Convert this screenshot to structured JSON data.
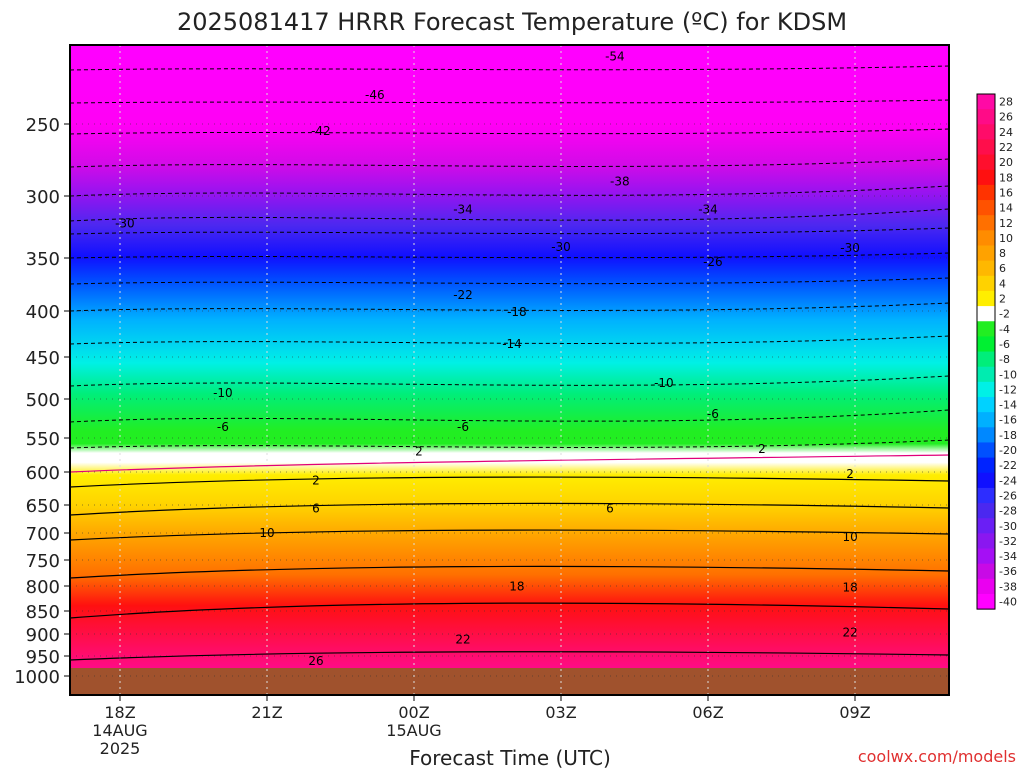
{
  "chart_data": {
    "type": "heatmap",
    "title": "2025081417 HRRR Forecast Temperature (ºC) for KDSM",
    "xlabel": "Forecast Time (UTC)",
    "ylabel": "",
    "credit": "coolwx.com/models",
    "x_ticks": [
      {
        "hours": 0,
        "label": "18Z",
        "sub1": "14AUG",
        "sub2": "2025"
      },
      {
        "hours": 3,
        "label": "21Z",
        "sub1": "",
        "sub2": ""
      },
      {
        "hours": 6,
        "label": "00Z",
        "sub1": "15AUG",
        "sub2": ""
      },
      {
        "hours": 9,
        "label": "03Z",
        "sub1": "",
        "sub2": ""
      },
      {
        "hours": 12,
        "label": "06Z",
        "sub1": "",
        "sub2": ""
      },
      {
        "hours": 15,
        "label": "09Z",
        "sub1": "",
        "sub2": ""
      }
    ],
    "y_ticks": [
      "250",
      "300",
      "350",
      "400",
      "450",
      "500",
      "550",
      "600",
      "650",
      "700",
      "750",
      "800",
      "850",
      "900",
      "950",
      "1000"
    ],
    "colorbar_labels": [
      "28",
      "26",
      "24",
      "22",
      "20",
      "18",
      "16",
      "14",
      "12",
      "10",
      "8",
      "6",
      "4",
      "2",
      "-2",
      "-4",
      "-6",
      "-8",
      "-10",
      "-12",
      "-14",
      "-16",
      "-18",
      "-20",
      "-22",
      "-24",
      "-26",
      "-28",
      "-30",
      "-32",
      "-34",
      "-36",
      "-38",
      "-40"
    ],
    "colorbar_colors": [
      "#ff0aa5",
      "#ff0b87",
      "#ff0c69",
      "#ff0e4b",
      "#ff0f2d",
      "#ff1010",
      "#ff3300",
      "#ff5200",
      "#ff7000",
      "#ff8c00",
      "#ffa200",
      "#ffb800",
      "#ffd200",
      "#ffee00",
      "#ffffff",
      "#22ee22",
      "#00f032",
      "#00ee7a",
      "#00ecb0",
      "#00f0e6",
      "#00d2ff",
      "#00b0ff",
      "#0088ff",
      "#0050ff",
      "#0023ff",
      "#1010ff",
      "#2d2dff",
      "#4b28f0",
      "#6a1ff5",
      "#8a17f0",
      "#a50ff5",
      "#c80ae6",
      "#ea00f0",
      "#ff00ff"
    ],
    "contour_labels": [
      {
        "value": "-54",
        "hours": 10.1,
        "hpa": 203
      },
      {
        "value": "-46",
        "hours": 5.2,
        "hpa": 230
      },
      {
        "value": "-42",
        "hours": 4.1,
        "hpa": 255
      },
      {
        "value": "-38",
        "hours": 10.2,
        "hpa": 290
      },
      {
        "value": "-34",
        "hours": 7.0,
        "hpa": 311
      },
      {
        "value": "-34",
        "hours": 12.0,
        "hpa": 311
      },
      {
        "value": "-30",
        "hours": 0.1,
        "hpa": 322
      },
      {
        "value": "-30",
        "hours": 9.0,
        "hpa": 341
      },
      {
        "value": "-30",
        "hours": 14.9,
        "hpa": 342
      },
      {
        "value": "-26",
        "hours": 12.1,
        "hpa": 354
      },
      {
        "value": "-22",
        "hours": 7.0,
        "hpa": 385
      },
      {
        "value": "-18",
        "hours": 8.1,
        "hpa": 401
      },
      {
        "value": "-14",
        "hours": 8.0,
        "hpa": 436
      },
      {
        "value": "-10",
        "hours": 2.1,
        "hpa": 493
      },
      {
        "value": "-10",
        "hours": 11.1,
        "hpa": 481
      },
      {
        "value": "-6",
        "hours": 2.1,
        "hpa": 536
      },
      {
        "value": "-6",
        "hours": 7.0,
        "hpa": 536
      },
      {
        "value": "-6",
        "hours": 12.1,
        "hpa": 519
      },
      {
        "value": "2",
        "hours": 6.1,
        "hpa": 570
      },
      {
        "value": "2",
        "hours": 13.1,
        "hpa": 566
      },
      {
        "value": "2",
        "hours": 4.0,
        "hpa": 613
      },
      {
        "value": "2",
        "hours": 14.9,
        "hpa": 603
      },
      {
        "value": "6",
        "hours": 4.0,
        "hpa": 656
      },
      {
        "value": "6",
        "hours": 10.0,
        "hpa": 656
      },
      {
        "value": "10",
        "hours": 3.0,
        "hpa": 700
      },
      {
        "value": "10",
        "hours": 14.9,
        "hpa": 707
      },
      {
        "value": "18",
        "hours": 8.1,
        "hpa": 801
      },
      {
        "value": "18",
        "hours": 14.9,
        "hpa": 803
      },
      {
        "value": "22",
        "hours": 7.0,
        "hpa": 913
      },
      {
        "value": "22",
        "hours": 14.9,
        "hpa": 897
      },
      {
        "value": "26",
        "hours": 4.0,
        "hpa": 963
      }
    ]
  }
}
